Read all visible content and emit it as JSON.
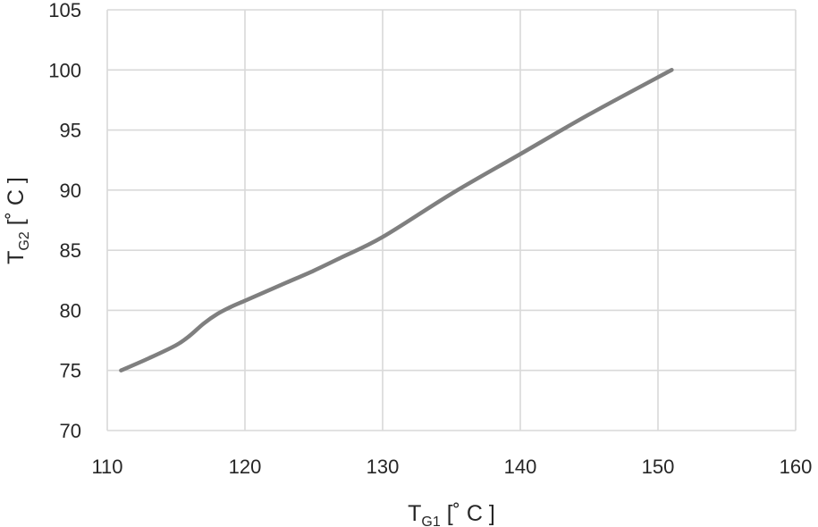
{
  "chart_data": {
    "type": "line",
    "title": "",
    "xlabel": {
      "main": "T",
      "sub": "G1",
      "unit": " [˚ C ]"
    },
    "ylabel": {
      "main": "T",
      "sub": "G2",
      "unit": " [˚ C ]"
    },
    "xlim": [
      110,
      160
    ],
    "ylim": [
      70,
      105
    ],
    "xticks": [
      110,
      120,
      130,
      140,
      150,
      160
    ],
    "yticks": [
      70,
      75,
      80,
      85,
      90,
      95,
      100,
      105
    ],
    "grid": true,
    "legend": "none",
    "series": [
      {
        "color": "#7f7f7f",
        "x": [
          111,
          113,
          115,
          116,
          117,
          118,
          119,
          120,
          121,
          123,
          125,
          127,
          130,
          135,
          140,
          145,
          151
        ],
        "y": [
          75,
          76,
          77.1,
          77.9,
          78.9,
          79.7,
          80.3,
          80.8,
          81.3,
          82.3,
          83.3,
          84.4,
          86.1,
          89.7,
          93.0,
          96.3,
          100
        ]
      }
    ]
  }
}
